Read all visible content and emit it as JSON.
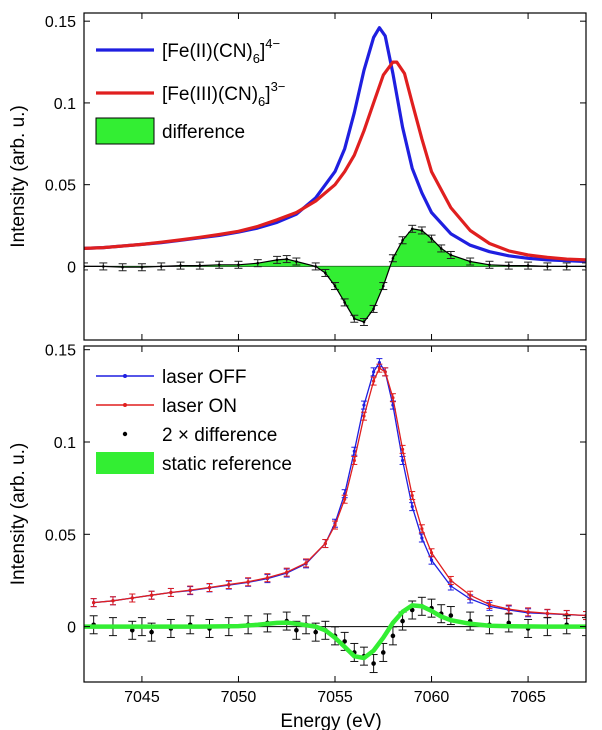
{
  "chart_data": [
    {
      "type": "line",
      "panel": "top",
      "xlabel": "",
      "ylabel": "Intensity (arb. u.)",
      "xlim": [
        7042,
        7068
      ],
      "ylim": [
        -0.045,
        0.155
      ],
      "yticks": [
        0,
        0.05,
        0.1,
        0.15
      ],
      "ytick_labels": [
        "0",
        "0.05",
        "0.1",
        "0.15"
      ],
      "legend_position": "top-left",
      "legend": [
        {
          "label": "[Fe(II)(CN)",
          "sub": "6",
          "close": "]",
          "sup": "4−",
          "color": "#1f1fe0",
          "kind": "line"
        },
        {
          "label": "[Fe(III)(CN)",
          "sub": "6",
          "close": "]",
          "sup": "3−",
          "color": "#e01f1f",
          "kind": "line"
        },
        {
          "label": "difference",
          "color": "#33ee33",
          "kind": "patch"
        }
      ],
      "series": [
        {
          "name": "[Fe(II)(CN)6]4−",
          "color": "#1f1fe0",
          "x": [
            7042,
            7043,
            7044,
            7045,
            7046,
            7047,
            7048,
            7049,
            7050,
            7051,
            7052,
            7053,
            7054,
            7055,
            7055.5,
            7056,
            7056.5,
            7057,
            7057.3,
            7057.6,
            7058,
            7058.5,
            7059,
            7059.5,
            7060,
            7061,
            7062,
            7063,
            7064,
            7065,
            7066,
            7067,
            7068
          ],
          "y": [
            0.011,
            0.0115,
            0.0125,
            0.0135,
            0.0145,
            0.016,
            0.0175,
            0.019,
            0.021,
            0.0235,
            0.027,
            0.032,
            0.042,
            0.058,
            0.072,
            0.094,
            0.12,
            0.14,
            0.146,
            0.141,
            0.118,
            0.085,
            0.06,
            0.045,
            0.033,
            0.02,
            0.013,
            0.009,
            0.0065,
            0.005,
            0.004,
            0.0035,
            0.003
          ]
        },
        {
          "name": "[Fe(III)(CN)6]3−",
          "color": "#e01f1f",
          "x": [
            7042,
            7043,
            7044,
            7045,
            7046,
            7047,
            7048,
            7049,
            7050,
            7051,
            7052,
            7053,
            7054,
            7055,
            7055.5,
            7056,
            7056.5,
            7057,
            7057.5,
            7058,
            7058.2,
            7058.6,
            7059,
            7059.5,
            7060,
            7061,
            7062,
            7063,
            7064,
            7065,
            7066,
            7067,
            7068
          ],
          "y": [
            0.011,
            0.0115,
            0.0125,
            0.0135,
            0.0148,
            0.0162,
            0.0178,
            0.0195,
            0.0215,
            0.0245,
            0.0285,
            0.033,
            0.04,
            0.05,
            0.058,
            0.068,
            0.083,
            0.1,
            0.117,
            0.125,
            0.125,
            0.118,
            0.1,
            0.078,
            0.058,
            0.036,
            0.022,
            0.014,
            0.0095,
            0.007,
            0.0055,
            0.0045,
            0.004
          ]
        },
        {
          "name": "difference",
          "color": "#33ee33",
          "x": [
            7042,
            7043,
            7044,
            7045,
            7046,
            7047,
            7048,
            7049,
            7050,
            7051,
            7052,
            7052.5,
            7053,
            7054,
            7054.5,
            7055,
            7055.5,
            7056,
            7056.5,
            7057,
            7057.5,
            7058,
            7058.5,
            7059,
            7059.5,
            7060,
            7060.5,
            7061,
            7062,
            7063,
            7064,
            7065,
            7066,
            7067,
            7068
          ],
          "y": [
            0,
            0,
            -0.0005,
            -0.0005,
            0,
            0.0005,
            0.0005,
            0.001,
            0.001,
            0.002,
            0.004,
            0.0045,
            0.003,
            0,
            -0.004,
            -0.012,
            -0.022,
            -0.032,
            -0.034,
            -0.026,
            -0.012,
            0.005,
            0.016,
            0.023,
            0.022,
            0.017,
            0.011,
            0.007,
            0.003,
            0.001,
            0.0005,
            0.0005,
            0,
            0,
            0
          ]
        }
      ]
    },
    {
      "type": "line",
      "panel": "bottom",
      "xlabel": "Energy (eV)",
      "ylabel": "Intensity (arb. u.)",
      "xlim": [
        7042,
        7068
      ],
      "ylim": [
        -0.03,
        0.152
      ],
      "xticks": [
        7045,
        7050,
        7055,
        7060,
        7065
      ],
      "xtick_labels": [
        "7045",
        "7050",
        "7055",
        "7060",
        "7065"
      ],
      "yticks": [
        0,
        0.05,
        0.1,
        0.15
      ],
      "ytick_labels": [
        "0",
        "0.05",
        "0.1",
        "0.15"
      ],
      "legend_position": "top-left",
      "legend": [
        {
          "label": "laser OFF",
          "color": "#1f1fe0",
          "kind": "line-marker"
        },
        {
          "label": "laser ON",
          "color": "#e01f1f",
          "kind": "line-marker"
        },
        {
          "label": "2 × difference",
          "color": "#000000",
          "kind": "marker"
        },
        {
          "label": "static reference",
          "color": "#33ee33",
          "kind": "patch"
        }
      ],
      "series": [
        {
          "name": "laser OFF",
          "color": "#1f1fe0",
          "x": [
            7042.5,
            7043.5,
            7044.5,
            7045.5,
            7046.5,
            7047.5,
            7048.5,
            7049.5,
            7050.5,
            7051.5,
            7052.5,
            7053.5,
            7054.5,
            7055,
            7055.5,
            7056,
            7056.5,
            7057,
            7057.3,
            7057.6,
            7058,
            7058.5,
            7059,
            7059.5,
            7060,
            7061,
            7062,
            7063,
            7064,
            7065,
            7066,
            7067,
            7068
          ],
          "y": [
            0.013,
            0.014,
            0.0155,
            0.017,
            0.0185,
            0.0195,
            0.021,
            0.0225,
            0.024,
            0.026,
            0.029,
            0.034,
            0.045,
            0.056,
            0.072,
            0.095,
            0.12,
            0.138,
            0.143,
            0.138,
            0.12,
            0.09,
            0.065,
            0.048,
            0.036,
            0.022,
            0.015,
            0.011,
            0.009,
            0.0075,
            0.007,
            0.0065,
            0.006
          ]
        },
        {
          "name": "laser ON",
          "color": "#e01f1f",
          "x": [
            7042.5,
            7043.5,
            7044.5,
            7045.5,
            7046.5,
            7047.5,
            7048.5,
            7049.5,
            7050.5,
            7051.5,
            7052.5,
            7053.5,
            7054.5,
            7055,
            7055.5,
            7056,
            7056.5,
            7057,
            7057.3,
            7057.6,
            7058,
            7058.5,
            7059,
            7059.5,
            7060,
            7061,
            7062,
            7063,
            7064,
            7065,
            7066,
            7067,
            7068
          ],
          "y": [
            0.013,
            0.014,
            0.0155,
            0.017,
            0.0185,
            0.0198,
            0.0212,
            0.0228,
            0.0243,
            0.0265,
            0.0295,
            0.0345,
            0.045,
            0.055,
            0.069,
            0.09,
            0.114,
            0.133,
            0.14,
            0.138,
            0.124,
            0.096,
            0.071,
            0.053,
            0.04,
            0.025,
            0.017,
            0.012,
            0.0095,
            0.008,
            0.0072,
            0.0066,
            0.006
          ]
        },
        {
          "name": "2 × difference",
          "color": "#000000",
          "x": [
            7042.5,
            7043.5,
            7044.5,
            7045,
            7045.5,
            7046.5,
            7047.5,
            7048.5,
            7049.5,
            7050.5,
            7051.5,
            7052.5,
            7053,
            7053.5,
            7054,
            7054.5,
            7055,
            7055.5,
            7056,
            7056.5,
            7057,
            7057.5,
            7058,
            7058.5,
            7059,
            7059.5,
            7060,
            7060.5,
            7061,
            7062,
            7063,
            7064,
            7065,
            7066,
            7067,
            7068
          ],
          "y": [
            0.001,
            0,
            -0.002,
            0,
            -0.003,
            -0.001,
            0.001,
            -0.001,
            0,
            0.001,
            0.002,
            0.003,
            -0.002,
            0.001,
            -0.003,
            -0.002,
            -0.005,
            -0.008,
            -0.014,
            -0.016,
            -0.02,
            -0.014,
            -0.005,
            0.003,
            0.009,
            0.011,
            0.01,
            0.007,
            0.006,
            0.003,
            0.001,
            0.002,
            -0.001,
            0,
            0.001,
            0
          ]
        },
        {
          "name": "static reference",
          "color": "#33ee33",
          "x": [
            7042,
            7044,
            7046,
            7048,
            7050,
            7051,
            7052,
            7052.5,
            7053,
            7054,
            7054.5,
            7055,
            7055.5,
            7056,
            7056.5,
            7057,
            7057.5,
            7058,
            7058.5,
            7059,
            7059.5,
            7060,
            7060.5,
            7061,
            7062,
            7063,
            7064,
            7066,
            7068
          ],
          "y": [
            0,
            0,
            0,
            0,
            0.0003,
            0.001,
            0.002,
            0.0022,
            0.0015,
            0,
            -0.002,
            -0.006,
            -0.011,
            -0.016,
            -0.017,
            -0.013,
            -0.006,
            0.002,
            0.008,
            0.0115,
            0.011,
            0.0085,
            0.0055,
            0.0035,
            0.0015,
            0.0005,
            0.0002,
            0,
            0
          ]
        }
      ]
    }
  ]
}
